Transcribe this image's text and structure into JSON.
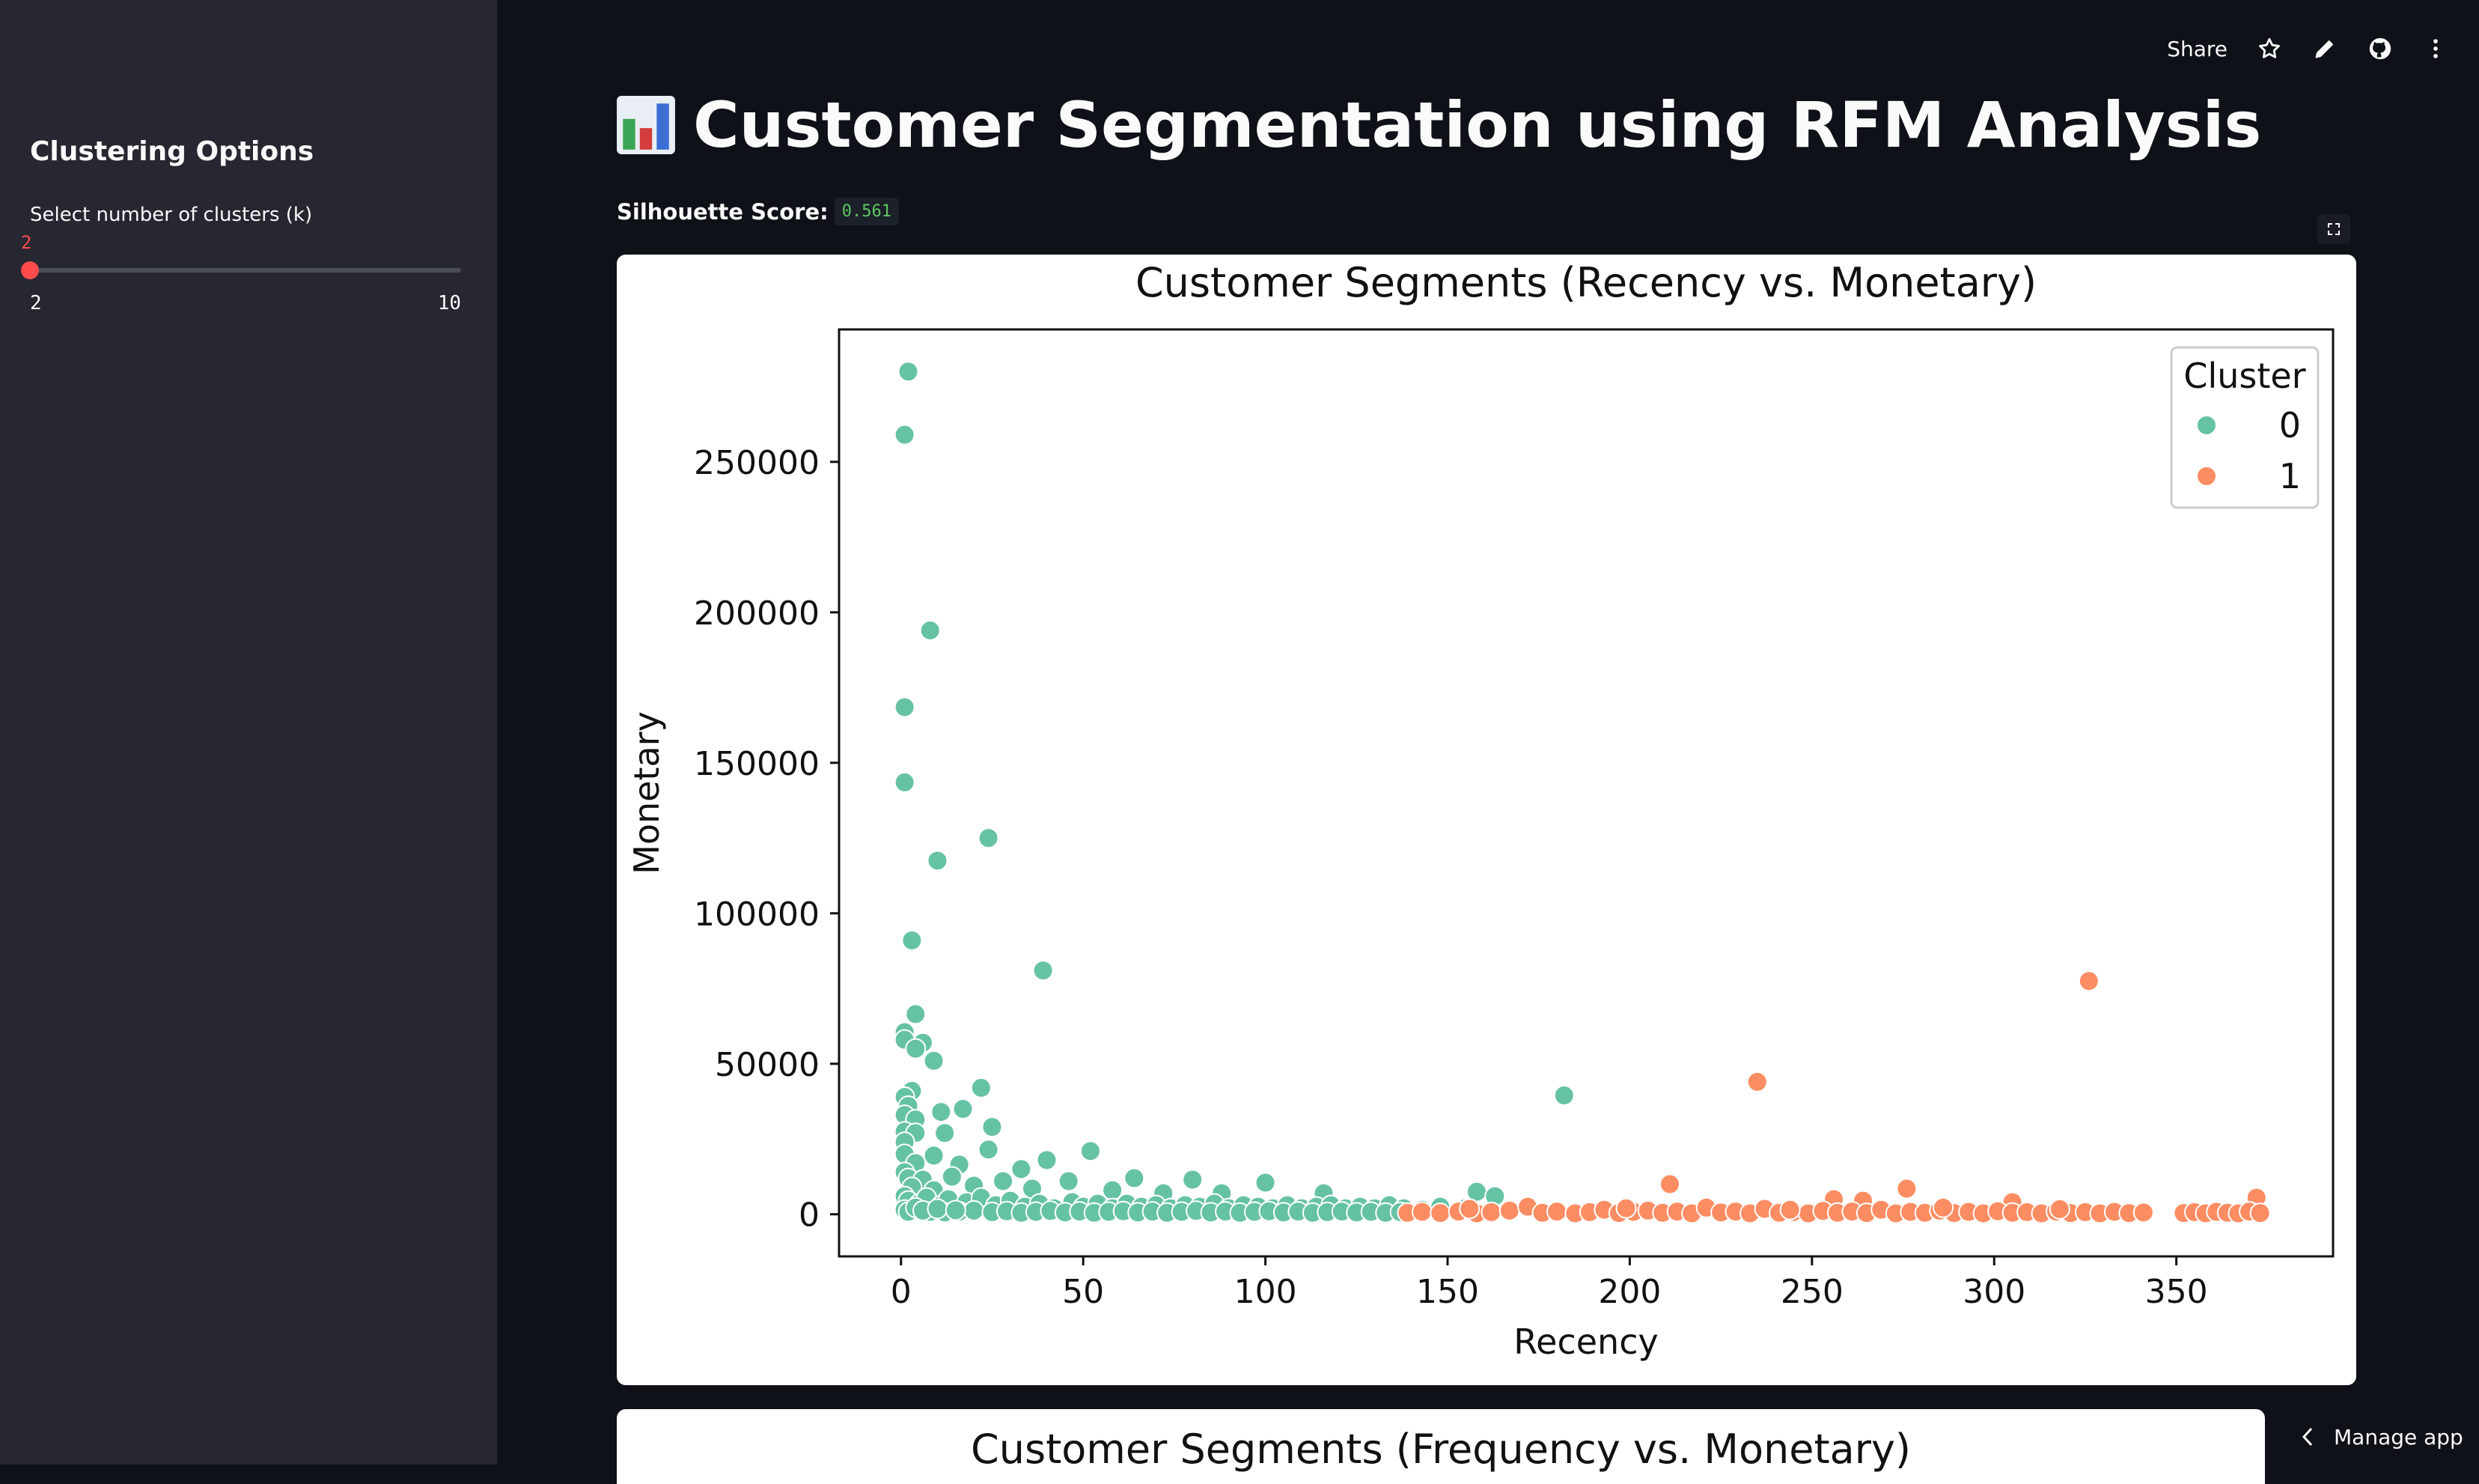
{
  "sidebar": {
    "title": "Clustering Options",
    "slider_label": "Select number of clusters (k)",
    "slider_value": "2",
    "slider_min": "2",
    "slider_max": "10",
    "slider_fraction": 0.0
  },
  "toolbar": {
    "share_label": "Share",
    "icons": [
      "star-icon",
      "pencil-icon",
      "github-icon",
      "more-vertical-icon"
    ]
  },
  "main": {
    "title": "Customer Segmentation using RFM Analysis",
    "title_icon": "bar-chart-emoji",
    "silhouette_label": "Silhouette Score:",
    "silhouette_value": "0.561",
    "next_chart_title": "Customer Segments (Frequency vs. Monetary)"
  },
  "manage_app": {
    "label": "Manage app"
  },
  "colors": {
    "accent": "#ff4b4b",
    "cluster0": "#66c2a5",
    "cluster1": "#fc8d62",
    "background": "#0e1117",
    "sidebar": "#262730"
  },
  "chart_data": {
    "type": "scatter",
    "title": "Customer Segments (Recency vs. Monetary)",
    "xlabel": "Recency",
    "ylabel": "Monetary",
    "xlim": [
      -17,
      393
    ],
    "ylim": [
      -14000,
      294000
    ],
    "xticks": [
      0,
      50,
      100,
      150,
      200,
      250,
      300,
      350
    ],
    "yticks": [
      0,
      50000,
      100000,
      150000,
      200000,
      250000
    ],
    "legend": {
      "title": "Cluster",
      "placement": "top-right",
      "entries": [
        "0",
        "1"
      ]
    },
    "grid": false,
    "series": [
      {
        "name": "0",
        "color": "#66c2a5",
        "points": [
          [
            2,
            280000
          ],
          [
            1,
            259000
          ],
          [
            8,
            194000
          ],
          [
            1,
            168500
          ],
          [
            1,
            143500
          ],
          [
            24,
            125000
          ],
          [
            10,
            117500
          ],
          [
            3,
            91000
          ],
          [
            39,
            81000
          ],
          [
            4,
            66500
          ],
          [
            1,
            60500
          ],
          [
            1,
            58000
          ],
          [
            6,
            57000
          ],
          [
            4,
            55000
          ],
          [
            9,
            51000
          ],
          [
            22,
            42000
          ],
          [
            3,
            41000
          ],
          [
            1,
            39000
          ],
          [
            2,
            36000
          ],
          [
            1,
            33000
          ],
          [
            4,
            31500
          ],
          [
            11,
            34000
          ],
          [
            17,
            35000
          ],
          [
            25,
            29000
          ],
          [
            1,
            27500
          ],
          [
            4,
            27000
          ],
          [
            12,
            27000
          ],
          [
            52,
            21000
          ],
          [
            24,
            21500
          ],
          [
            1,
            24000
          ],
          [
            1,
            20000
          ],
          [
            9,
            19500
          ],
          [
            4,
            17000
          ],
          [
            16,
            16500
          ],
          [
            40,
            18000
          ],
          [
            33,
            15000
          ],
          [
            64,
            12000
          ],
          [
            100,
            10500
          ],
          [
            80,
            11500
          ],
          [
            1,
            14000
          ],
          [
            2,
            12000
          ],
          [
            6,
            11500
          ],
          [
            14,
            12500
          ],
          [
            28,
            11000
          ],
          [
            46,
            11000
          ],
          [
            20,
            9500
          ],
          [
            9,
            8000
          ],
          [
            3,
            9000
          ],
          [
            36,
            8500
          ],
          [
            58,
            8000
          ],
          [
            72,
            7000
          ],
          [
            88,
            7000
          ],
          [
            116,
            7000
          ],
          [
            158,
            7500
          ],
          [
            163,
            6000
          ],
          [
            182,
            39500
          ],
          [
            1,
            6000
          ],
          [
            2,
            4500
          ],
          [
            5,
            3500
          ],
          [
            7,
            5500
          ],
          [
            11,
            3000
          ],
          [
            13,
            5000
          ],
          [
            18,
            4000
          ],
          [
            22,
            5500
          ],
          [
            26,
            3000
          ],
          [
            30,
            4500
          ],
          [
            34,
            2500
          ],
          [
            38,
            3500
          ],
          [
            42,
            2000
          ],
          [
            47,
            4000
          ],
          [
            50,
            2500
          ],
          [
            54,
            3500
          ],
          [
            58,
            2000
          ],
          [
            62,
            3500
          ],
          [
            66,
            2500
          ],
          [
            70,
            3000
          ],
          [
            74,
            2000
          ],
          [
            78,
            3000
          ],
          [
            82,
            2500
          ],
          [
            86,
            3500
          ],
          [
            90,
            2000
          ],
          [
            94,
            3000
          ],
          [
            98,
            2500
          ],
          [
            102,
            2000
          ],
          [
            106,
            3000
          ],
          [
            110,
            2000
          ],
          [
            114,
            2500
          ],
          [
            118,
            3000
          ],
          [
            122,
            2000
          ],
          [
            126,
            2500
          ],
          [
            130,
            2000
          ],
          [
            134,
            3000
          ],
          [
            138,
            2000
          ],
          [
            143,
            1500
          ],
          [
            148,
            2500
          ],
          [
            155,
            2000
          ],
          [
            3,
            1000
          ],
          [
            8,
            800
          ],
          [
            12,
            600
          ],
          [
            16,
            900
          ],
          [
            20,
            1200
          ],
          [
            25,
            700
          ],
          [
            29,
            1000
          ],
          [
            33,
            500
          ],
          [
            37,
            800
          ],
          [
            41,
            1100
          ],
          [
            45,
            600
          ],
          [
            49,
            900
          ],
          [
            53,
            500
          ],
          [
            57,
            800
          ],
          [
            61,
            1000
          ],
          [
            65,
            600
          ],
          [
            69,
            900
          ],
          [
            73,
            500
          ],
          [
            77,
            800
          ],
          [
            81,
            1100
          ],
          [
            85,
            600
          ],
          [
            89,
            900
          ],
          [
            93,
            500
          ],
          [
            97,
            800
          ],
          [
            101,
            1000
          ],
          [
            105,
            600
          ],
          [
            109,
            900
          ],
          [
            113,
            500
          ],
          [
            117,
            700
          ],
          [
            121,
            900
          ],
          [
            125,
            600
          ],
          [
            129,
            800
          ],
          [
            133,
            500
          ],
          [
            137,
            700
          ],
          [
            1,
            1500
          ],
          [
            2,
            800
          ],
          [
            4,
            2200
          ],
          [
            6,
            1200
          ],
          [
            10,
            1800
          ],
          [
            15,
            1300
          ]
        ]
      },
      {
        "name": "1",
        "color": "#fc8d62",
        "points": [
          [
            326,
            77500
          ],
          [
            235,
            44000
          ],
          [
            211,
            10000
          ],
          [
            276,
            8500
          ],
          [
            372,
            5500
          ],
          [
            256,
            5000
          ],
          [
            264,
            4500
          ],
          [
            305,
            4000
          ],
          [
            139,
            500
          ],
          [
            143,
            800
          ],
          [
            148,
            400
          ],
          [
            153,
            900
          ],
          [
            158,
            300
          ],
          [
            162,
            700
          ],
          [
            167,
            1200
          ],
          [
            172,
            2500
          ],
          [
            176,
            500
          ],
          [
            180,
            900
          ],
          [
            185,
            300
          ],
          [
            189,
            700
          ],
          [
            193,
            1500
          ],
          [
            197,
            400
          ],
          [
            201,
            800
          ],
          [
            205,
            1200
          ],
          [
            209,
            500
          ],
          [
            213,
            900
          ],
          [
            217,
            300
          ],
          [
            221,
            2200
          ],
          [
            225,
            600
          ],
          [
            229,
            900
          ],
          [
            233,
            300
          ],
          [
            237,
            1800
          ],
          [
            241,
            500
          ],
          [
            245,
            800
          ],
          [
            249,
            300
          ],
          [
            253,
            1100
          ],
          [
            257,
            500
          ],
          [
            261,
            900
          ],
          [
            265,
            400
          ],
          [
            269,
            1500
          ],
          [
            273,
            300
          ],
          [
            277,
            800
          ],
          [
            281,
            500
          ],
          [
            285,
            1200
          ],
          [
            289,
            400
          ],
          [
            293,
            800
          ],
          [
            297,
            300
          ],
          [
            301,
            1000
          ],
          [
            305,
            500
          ],
          [
            309,
            700
          ],
          [
            313,
            300
          ],
          [
            317,
            900
          ],
          [
            321,
            400
          ],
          [
            325,
            700
          ],
          [
            329,
            300
          ],
          [
            333,
            800
          ],
          [
            337,
            400
          ],
          [
            341,
            600
          ],
          [
            352,
            400
          ],
          [
            355,
            700
          ],
          [
            358,
            300
          ],
          [
            361,
            800
          ],
          [
            364,
            500
          ],
          [
            367,
            300
          ],
          [
            370,
            900
          ],
          [
            373,
            400
          ],
          [
            156,
            1800
          ],
          [
            199,
            2000
          ],
          [
            244,
            1500
          ],
          [
            286,
            2200
          ],
          [
            318,
            1700
          ]
        ]
      }
    ]
  }
}
